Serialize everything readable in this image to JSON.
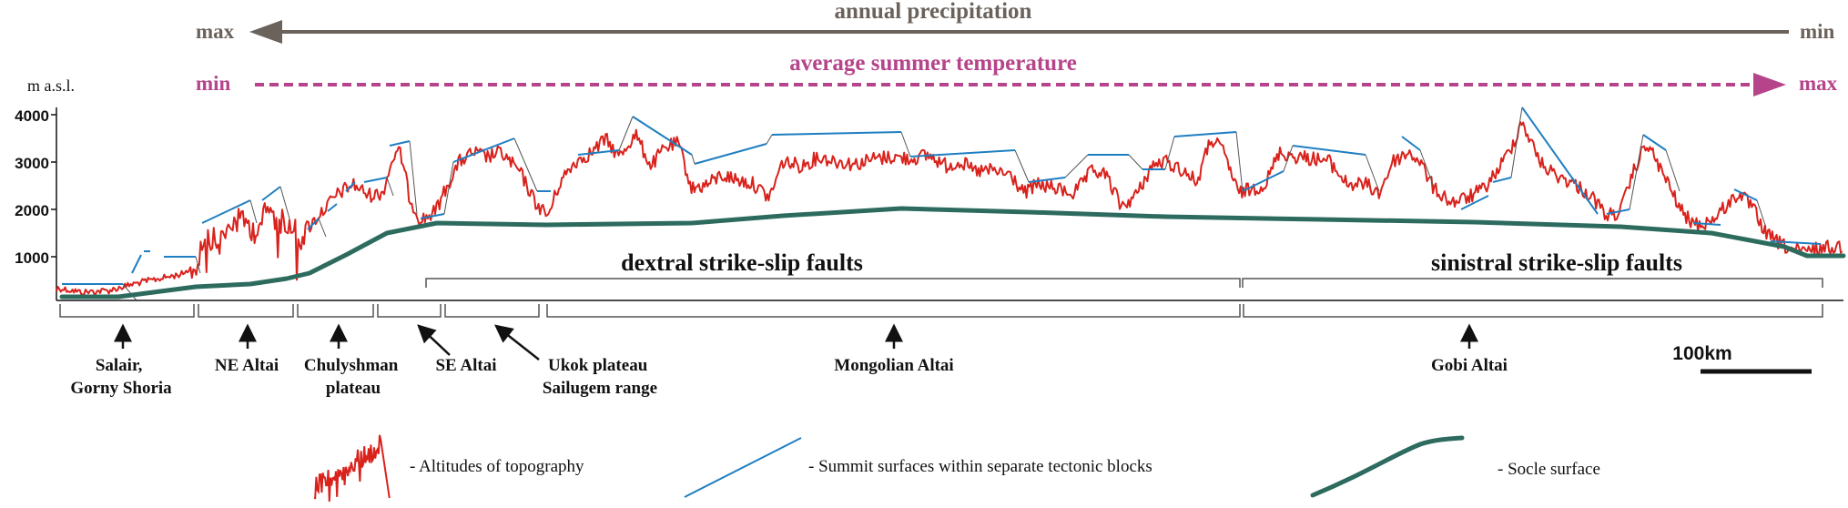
{
  "colors": {
    "precip": "#6b625b",
    "temp": "#b5448b",
    "topo": "#d9221c",
    "summit": "#1f7fc2",
    "socle": "#2d6b5f",
    "ink": "#111111",
    "bracket": "#555555"
  },
  "precipitation": {
    "label": "annual precipitation",
    "left": "max",
    "right": "min"
  },
  "temperature": {
    "label": "average summer temperature",
    "left": "min",
    "right": "max"
  },
  "yaxis": {
    "label": "m a.s.l.",
    "ticks": [
      "4000",
      "3000",
      "2000",
      "1000"
    ]
  },
  "faults": {
    "dextral": "dextral strike-slip faults",
    "sinistral": "sinistral strike-slip faults"
  },
  "regions": [
    {
      "lines": [
        "Salair,",
        "Gorny Shoria"
      ]
    },
    {
      "lines": [
        "NE Altai"
      ]
    },
    {
      "lines": [
        "Chulyshman",
        "plateau"
      ]
    },
    {
      "lines": [
        "SE Altai"
      ]
    },
    {
      "lines": [
        "Ukok plateau",
        "Sailugem range"
      ]
    },
    {
      "lines": [
        "Mongolian  Altai"
      ]
    },
    {
      "lines": [
        "Gobi  Altai"
      ]
    }
  ],
  "scale": {
    "label": "100km"
  },
  "legend": {
    "topography": "- Altitudes of topography",
    "summit": "- Summit surfaces within separate tectonic blocks",
    "socle": "- Socle surface"
  }
}
